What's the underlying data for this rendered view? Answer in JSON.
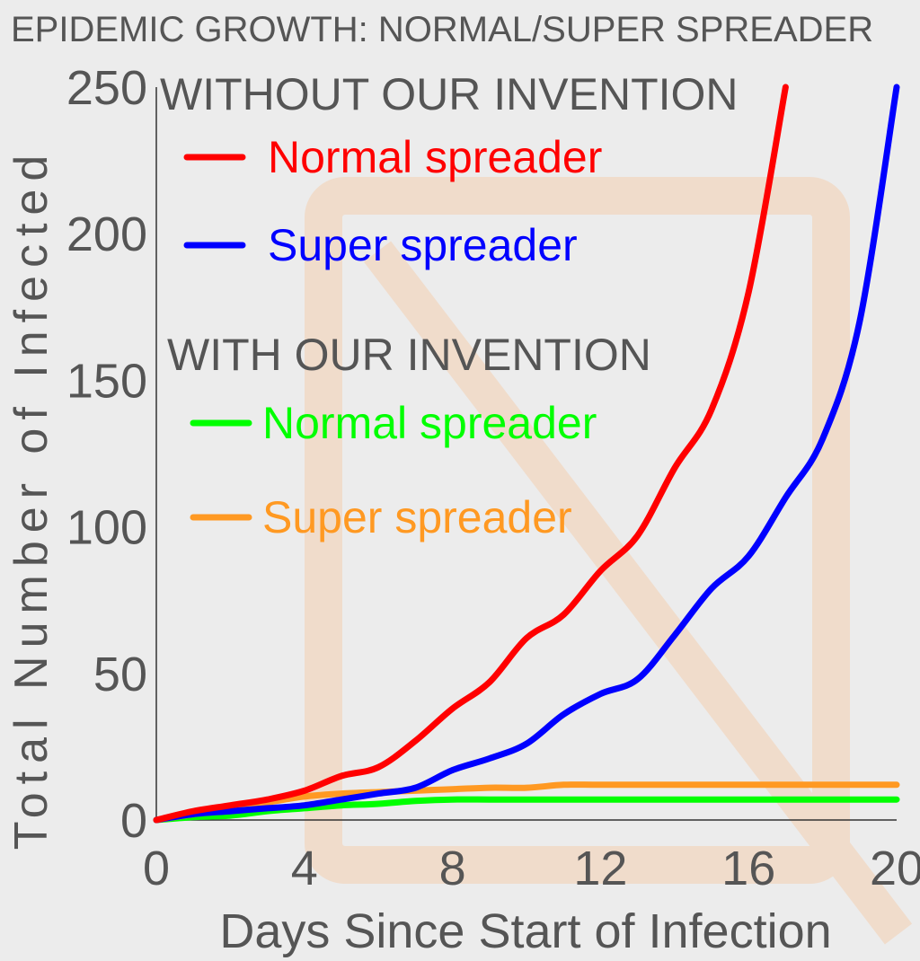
{
  "chart_data": {
    "type": "line",
    "title": "EPIDEMIC GROWTH: NORMAL/SUPER SPREADER",
    "xlabel": "Days Since Start of Infection",
    "ylabel": "Total Number of Infected",
    "xlim": [
      0,
      20
    ],
    "ylim": [
      0,
      250
    ],
    "xticks": [
      0,
      4,
      8,
      12,
      16,
      20
    ],
    "yticks": [
      0,
      50,
      100,
      150,
      200,
      250
    ],
    "grid": false,
    "legend_groups": [
      {
        "heading": "WITHOUT OUR INVENTION",
        "entries": [
          0,
          1
        ]
      },
      {
        "heading": "WITH  OUR INVENTION",
        "entries": [
          2,
          3
        ]
      }
    ],
    "series": [
      {
        "name": "Normal spreader",
        "color": "#ff0000",
        "x": [
          0,
          1,
          2,
          3,
          4,
          5,
          6,
          7,
          8,
          9,
          10,
          11,
          12,
          13,
          14,
          15,
          16,
          17
        ],
        "y": [
          0,
          3,
          5,
          7,
          10,
          15,
          18,
          27,
          38,
          47,
          62,
          70,
          85,
          97,
          120,
          140,
          180,
          250
        ]
      },
      {
        "name": "Super spreader",
        "color": "#0000ff",
        "x": [
          0,
          1,
          2,
          3,
          4,
          5,
          6,
          7,
          8,
          9,
          10,
          11,
          12,
          13,
          14,
          15,
          16,
          17,
          18,
          19,
          20
        ],
        "y": [
          0,
          2,
          3,
          4,
          5,
          7,
          9,
          11,
          17,
          21,
          26,
          36,
          43,
          48,
          63,
          79,
          90,
          110,
          130,
          170,
          250
        ]
      },
      {
        "name": "Normal spreader",
        "color": "#00ff00",
        "x": [
          0,
          1,
          2,
          3,
          4,
          5,
          6,
          7,
          8,
          9,
          10,
          12,
          14,
          16,
          18,
          20
        ],
        "y": [
          0,
          1,
          1.5,
          3,
          4,
          5,
          5.5,
          6.5,
          7,
          7,
          7,
          7,
          7,
          7,
          7,
          7
        ]
      },
      {
        "name": "Super spreader",
        "color": "#ff9922",
        "x": [
          0,
          1,
          2,
          3,
          4,
          5,
          6,
          7,
          8,
          9,
          10,
          11,
          12,
          14,
          16,
          18,
          20
        ],
        "y": [
          0,
          2,
          4,
          6,
          8,
          9,
          9.5,
          10,
          10.5,
          11,
          11,
          12,
          12,
          12,
          12,
          12,
          12
        ]
      }
    ]
  }
}
